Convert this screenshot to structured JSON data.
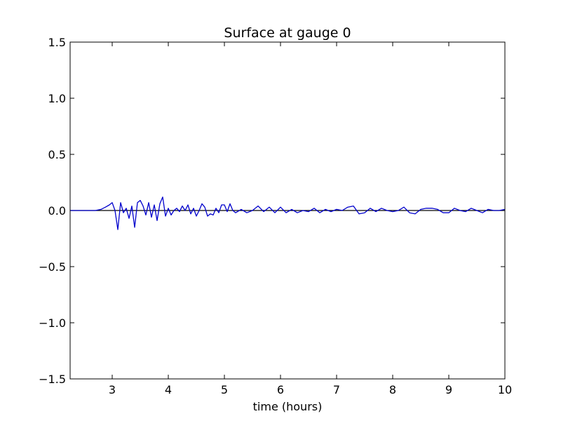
{
  "chart_data": {
    "type": "line",
    "title": "Surface at gauge 0",
    "xlabel": "time (hours)",
    "ylabel": "",
    "xlim": [
      2.25,
      10
    ],
    "ylim": [
      -1.5,
      1.5
    ],
    "xticks": [
      3,
      4,
      5,
      6,
      7,
      8,
      9,
      10
    ],
    "yticks": [
      -1.5,
      -1.0,
      -0.5,
      0.0,
      0.5,
      1.0,
      1.5
    ],
    "xtick_labels": [
      "3",
      "4",
      "5",
      "6",
      "7",
      "8",
      "9",
      "10"
    ],
    "ytick_labels": [
      "−1.5",
      "−1.0",
      "−0.5",
      "0.0",
      "0.5",
      "1.0",
      "1.5"
    ],
    "grid": false,
    "reference_line": {
      "y": 0,
      "color": "#000000"
    },
    "series": [
      {
        "color": "#0000cc",
        "x": [
          2.25,
          2.7,
          2.8,
          2.88,
          2.95,
          3.0,
          3.05,
          3.1,
          3.15,
          3.2,
          3.25,
          3.3,
          3.35,
          3.4,
          3.45,
          3.5,
          3.55,
          3.6,
          3.65,
          3.7,
          3.75,
          3.8,
          3.85,
          3.9,
          3.95,
          4.0,
          4.05,
          4.1,
          4.15,
          4.2,
          4.25,
          4.3,
          4.35,
          4.4,
          4.45,
          4.5,
          4.55,
          4.6,
          4.65,
          4.7,
          4.75,
          4.8,
          4.85,
          4.9,
          4.95,
          5.0,
          5.05,
          5.1,
          5.15,
          5.2,
          5.3,
          5.4,
          5.5,
          5.6,
          5.7,
          5.8,
          5.9,
          6.0,
          6.1,
          6.2,
          6.3,
          6.4,
          6.5,
          6.6,
          6.7,
          6.8,
          6.9,
          7.0,
          7.1,
          7.2,
          7.3,
          7.4,
          7.5,
          7.6,
          7.7,
          7.8,
          7.9,
          8.0,
          8.1,
          8.2,
          8.3,
          8.4,
          8.5,
          8.6,
          8.7,
          8.8,
          8.9,
          9.0,
          9.1,
          9.2,
          9.3,
          9.4,
          9.5,
          9.6,
          9.7,
          9.8,
          9.9,
          10.0
        ],
        "y": [
          0.0,
          0.0,
          0.01,
          0.03,
          0.05,
          0.07,
          0.0,
          -0.17,
          0.07,
          -0.02,
          0.02,
          -0.07,
          0.04,
          -0.15,
          0.07,
          0.09,
          0.04,
          -0.04,
          0.07,
          -0.06,
          0.05,
          -0.09,
          0.06,
          0.12,
          -0.05,
          0.02,
          -0.04,
          0.0,
          0.02,
          -0.01,
          0.04,
          0.0,
          0.05,
          -0.03,
          0.02,
          -0.05,
          0.0,
          0.06,
          0.03,
          -0.05,
          -0.03,
          -0.04,
          0.02,
          -0.02,
          0.05,
          0.05,
          -0.01,
          0.06,
          0.0,
          -0.02,
          0.01,
          -0.02,
          0.0,
          0.04,
          -0.01,
          0.03,
          -0.02,
          0.03,
          -0.02,
          0.01,
          -0.02,
          0.0,
          -0.01,
          0.02,
          -0.02,
          0.01,
          -0.01,
          0.01,
          0.0,
          0.03,
          0.04,
          -0.03,
          -0.02,
          0.02,
          -0.01,
          0.02,
          0.0,
          -0.01,
          0.0,
          0.03,
          -0.02,
          -0.03,
          0.01,
          0.02,
          0.02,
          0.01,
          -0.02,
          -0.02,
          0.02,
          0.0,
          -0.01,
          0.02,
          0.0,
          -0.02,
          0.01,
          0.0,
          0.0,
          0.01
        ]
      }
    ]
  }
}
